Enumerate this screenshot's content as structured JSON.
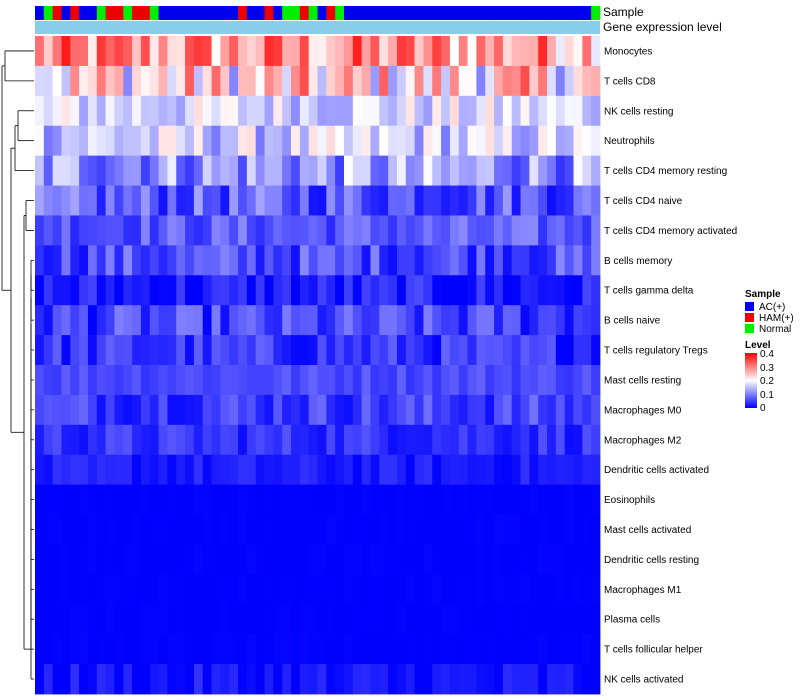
{
  "chart_data": {
    "type": "heatmap",
    "title": "",
    "annotation_labels": {
      "sample": "Sample",
      "expression": "Gene expression level"
    },
    "sample_groups": [
      "AC(+)",
      "HAM(+)",
      "Normal"
    ],
    "sample_colors": {
      "AC(+)": "#0000ee",
      "HAM(+)": "#ee0000",
      "Normal": "#00ee00"
    },
    "expression_bar_color": "#87ceeb",
    "legend": {
      "sample_title": "Sample",
      "level_title": "Level",
      "level_ticks": [
        "0.4",
        "0.3",
        "0.2",
        "0.1",
        "0"
      ],
      "range": [
        0,
        0.4
      ],
      "palette": [
        "#0000ff",
        "#ffffff",
        "#ff0000"
      ]
    },
    "samples": [
      {
        "id": "S01",
        "group": "AC(+)"
      },
      {
        "id": "S02",
        "group": "Normal"
      },
      {
        "id": "S03",
        "group": "HAM(+)"
      },
      {
        "id": "S04",
        "group": "AC(+)"
      },
      {
        "id": "S05",
        "group": "HAM(+)"
      },
      {
        "id": "S06",
        "group": "AC(+)"
      },
      {
        "id": "S07",
        "group": "AC(+)"
      },
      {
        "id": "S08",
        "group": "Normal"
      },
      {
        "id": "S09",
        "group": "HAM(+)"
      },
      {
        "id": "S10",
        "group": "HAM(+)"
      },
      {
        "id": "S11",
        "group": "Normal"
      },
      {
        "id": "S12",
        "group": "HAM(+)"
      },
      {
        "id": "S13",
        "group": "HAM(+)"
      },
      {
        "id": "S14",
        "group": "Normal"
      },
      {
        "id": "S15",
        "group": "AC(+)"
      },
      {
        "id": "S16",
        "group": "AC(+)"
      },
      {
        "id": "S17",
        "group": "AC(+)"
      },
      {
        "id": "S18",
        "group": "AC(+)"
      },
      {
        "id": "S19",
        "group": "AC(+)"
      },
      {
        "id": "S20",
        "group": "AC(+)"
      },
      {
        "id": "S21",
        "group": "AC(+)"
      },
      {
        "id": "S22",
        "group": "AC(+)"
      },
      {
        "id": "S23",
        "group": "AC(+)"
      },
      {
        "id": "S24",
        "group": "HAM(+)"
      },
      {
        "id": "S25",
        "group": "AC(+)"
      },
      {
        "id": "S26",
        "group": "AC(+)"
      },
      {
        "id": "S27",
        "group": "HAM(+)"
      },
      {
        "id": "S28",
        "group": "AC(+)"
      },
      {
        "id": "S29",
        "group": "Normal"
      },
      {
        "id": "S30",
        "group": "Normal"
      },
      {
        "id": "S31",
        "group": "HAM(+)"
      },
      {
        "id": "S32",
        "group": "Normal"
      },
      {
        "id": "S33",
        "group": "AC(+)"
      },
      {
        "id": "S34",
        "group": "HAM(+)"
      },
      {
        "id": "S35",
        "group": "Normal"
      },
      {
        "id": "S36",
        "group": "AC(+)"
      },
      {
        "id": "S37",
        "group": "AC(+)"
      },
      {
        "id": "S38",
        "group": "AC(+)"
      },
      {
        "id": "S39",
        "group": "AC(+)"
      },
      {
        "id": "S40",
        "group": "AC(+)"
      },
      {
        "id": "S41",
        "group": "AC(+)"
      },
      {
        "id": "S42",
        "group": "AC(+)"
      },
      {
        "id": "S43",
        "group": "AC(+)"
      },
      {
        "id": "S44",
        "group": "AC(+)"
      },
      {
        "id": "S45",
        "group": "AC(+)"
      },
      {
        "id": "S46",
        "group": "AC(+)"
      },
      {
        "id": "S47",
        "group": "AC(+)"
      },
      {
        "id": "S48",
        "group": "AC(+)"
      },
      {
        "id": "S49",
        "group": "AC(+)"
      },
      {
        "id": "S50",
        "group": "AC(+)"
      },
      {
        "id": "S51",
        "group": "AC(+)"
      },
      {
        "id": "S52",
        "group": "AC(+)"
      },
      {
        "id": "S53",
        "group": "AC(+)"
      },
      {
        "id": "S54",
        "group": "AC(+)"
      },
      {
        "id": "S55",
        "group": "AC(+)"
      },
      {
        "id": "S56",
        "group": "AC(+)"
      },
      {
        "id": "S57",
        "group": "AC(+)"
      },
      {
        "id": "S58",
        "group": "AC(+)"
      },
      {
        "id": "S59",
        "group": "AC(+)"
      },
      {
        "id": "S60",
        "group": "AC(+)"
      },
      {
        "id": "S61",
        "group": "AC(+)"
      },
      {
        "id": "S62",
        "group": "AC(+)"
      },
      {
        "id": "S63",
        "group": "AC(+)"
      },
      {
        "id": "S64",
        "group": "Normal"
      }
    ],
    "rows": [
      {
        "label": "Monocytes",
        "level": 0.28,
        "spread": 0.1
      },
      {
        "label": "T cells CD8",
        "level": 0.22,
        "spread": 0.12
      },
      {
        "label": "NK cells resting",
        "level": 0.17,
        "spread": 0.06
      },
      {
        "label": "Neutrophils",
        "level": 0.16,
        "spread": 0.07
      },
      {
        "label": "T cells CD4 memory resting",
        "level": 0.12,
        "spread": 0.08
      },
      {
        "label": "T cells CD4 naive",
        "level": 0.07,
        "spread": 0.06
      },
      {
        "label": "T cells CD4 memory activated",
        "level": 0.07,
        "spread": 0.04
      },
      {
        "label": "B cells memory",
        "level": 0.06,
        "spread": 0.05
      },
      {
        "label": "T cells gamma delta",
        "level": 0.02,
        "spread": 0.04
      },
      {
        "label": "B cells naive",
        "level": 0.05,
        "spread": 0.05
      },
      {
        "label": "T cells regulatory  Tregs",
        "level": 0.04,
        "spread": 0.04
      },
      {
        "label": "Mast cells resting",
        "level": 0.06,
        "spread": 0.02
      },
      {
        "label": "Macrophages M0",
        "level": 0.05,
        "spread": 0.04
      },
      {
        "label": "Macrophages M2",
        "level": 0.04,
        "spread": 0.03
      },
      {
        "label": "Dendritic cells activated",
        "level": 0.02,
        "spread": 0.02
      },
      {
        "label": "Eosinophils",
        "level": 0.0,
        "spread": 0.003
      },
      {
        "label": "Mast cells activated",
        "level": 0.0,
        "spread": 0.003
      },
      {
        "label": "Dendritic cells resting",
        "level": 0.0,
        "spread": 0.003
      },
      {
        "label": "Macrophages M1",
        "level": 0.0,
        "spread": 0.003
      },
      {
        "label": "Plasma cells",
        "level": 0.0,
        "spread": 0.003
      },
      {
        "label": "T cells follicular helper",
        "level": 0.0,
        "spread": 0.003
      },
      {
        "label": "NK cells activated",
        "level": 0.01,
        "spread": 0.03
      }
    ]
  }
}
